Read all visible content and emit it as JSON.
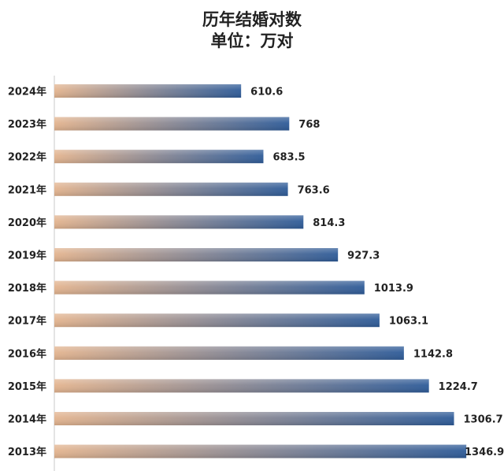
{
  "chart_data": {
    "type": "bar",
    "orientation": "horizontal",
    "title": "历年结婚对数",
    "subtitle": "单位：万对",
    "categories": [
      "2024年",
      "2023年",
      "2022年",
      "2021年",
      "2020年",
      "2019年",
      "2018年",
      "2017年",
      "2016年",
      "2015年",
      "2014年",
      "2013年"
    ],
    "values": [
      610.6,
      768,
      683.5,
      763.6,
      814.3,
      927.3,
      1013.9,
      1063.1,
      1142.8,
      1224.7,
      1306.7,
      1346.9
    ],
    "value_labels": [
      "610.6",
      "768",
      "683.5",
      "763.6",
      "814.3",
      "927.3",
      "1013.9",
      "1063.1",
      "1142.8",
      "1224.7",
      "1306.7",
      "1346.9"
    ],
    "xlim": [
      0,
      1362
    ],
    "grid": false,
    "colors": {
      "bar_start": "#e3b48f",
      "bar_end": "#2e5b98"
    }
  }
}
